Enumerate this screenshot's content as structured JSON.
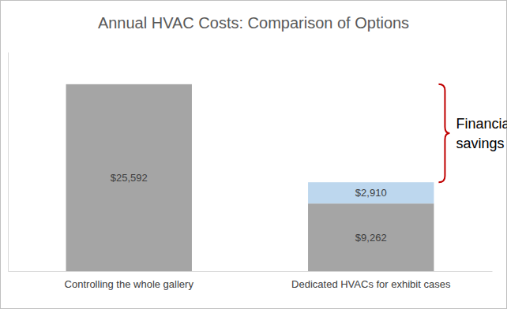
{
  "chart_data": {
    "type": "bar",
    "title": "Annual HVAC Costs: Comparison of Options",
    "categories": [
      "Controlling the whole gallery",
      "Dedicated HVACs for exhibit cases"
    ],
    "series": [
      {
        "color": "#a5a5a5",
        "values": [
          25592,
          9262
        ],
        "value_labels": [
          "$25,592",
          "$9,262"
        ]
      },
      {
        "color": "#bdd7ee",
        "values": [
          null,
          2910
        ],
        "value_labels": [
          null,
          "$2,910"
        ]
      }
    ],
    "stacked": true,
    "data_labels": true,
    "grid": false,
    "tick_labels": "x",
    "ylim": [
      0,
      30000
    ],
    "annotations": [
      {
        "text": "Financial savings"
      }
    ]
  }
}
